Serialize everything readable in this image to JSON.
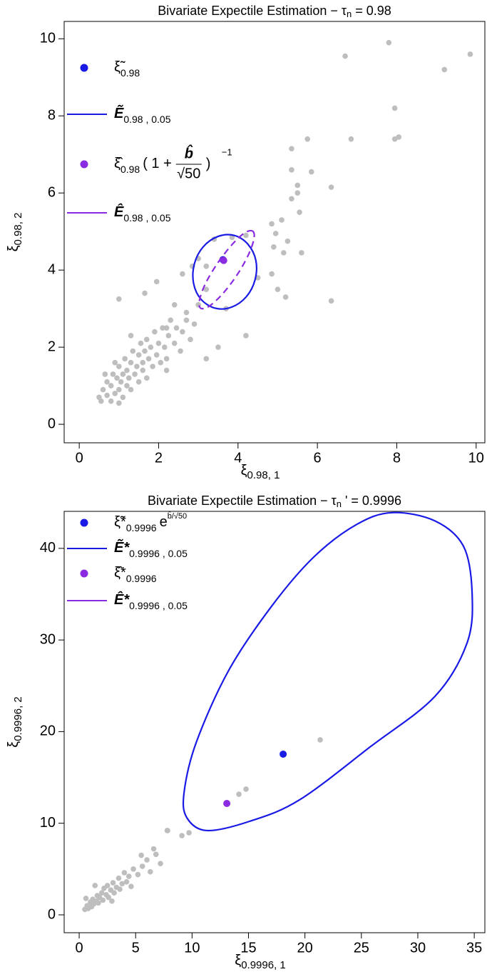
{
  "chart_data": [
    {
      "type": "scatter",
      "title": "Bivariate Expectile Estimation − τ",
      "title_sub": "n",
      "title_end": " =  0.98",
      "xlabel": "ξ",
      "xlabel_sub": "0.98, 1",
      "ylabel": "ξ",
      "ylabel_sub": "0.98, 2",
      "xlim": [
        -0.38,
        10.22
      ],
      "ylim": [
        -0.48,
        10.45
      ],
      "xticks": [
        0,
        2,
        4,
        6,
        8,
        10
      ],
      "yticks": [
        0,
        2,
        4,
        6,
        8,
        10
      ],
      "series": [
        {
          "kind": "point",
          "color": "#bebebe",
          "x": [
            7.8,
            6.7,
            9.85,
            9.2,
            7.95,
            8.05,
            7.95,
            6.85,
            5.75,
            5.35,
            5.35,
            5.85,
            6.35,
            5.5,
            5.5,
            5.35,
            5.55,
            5.1,
            4.85,
            4.95,
            5.25,
            4.9,
            5.15,
            5.6,
            6.35,
            5.2,
            5.0,
            4.85,
            4.5,
            4.2,
            3.85,
            3.4,
            3.2,
            3.0,
            2.85,
            2.6,
            3.2,
            3.7,
            4.2,
            3.5,
            3.2,
            1.0,
            1.65,
            1.95,
            2.4,
            2.7,
            2.2,
            0.5,
            0.55,
            0.6,
            0.7,
            0.7,
            0.8,
            0.8,
            0.85,
            0.9,
            0.95,
            1.0,
            1.0,
            1.05,
            1.1,
            1.1,
            1.15,
            1.2,
            1.2,
            1.25,
            1.3,
            1.3,
            1.35,
            1.4,
            1.45,
            1.5,
            1.5,
            1.55,
            1.6,
            1.6,
            1.65,
            1.7,
            1.7,
            1.75,
            1.8,
            1.85,
            1.9,
            1.95,
            2.0,
            2.05,
            2.1,
            2.15,
            2.2,
            2.25,
            2.3,
            2.4,
            2.45,
            2.55,
            2.6,
            2.7,
            2.8,
            2.9,
            3.0,
            1.3,
            0.9,
            2.2,
            1.0,
            0.65
          ],
          "values": [
            9.9,
            9.55,
            9.6,
            9.2,
            8.2,
            7.45,
            7.4,
            7.4,
            7.4,
            7.15,
            6.6,
            6.55,
            6.15,
            6.2,
            6.0,
            5.85,
            5.5,
            5.3,
            5.2,
            4.95,
            4.75,
            4.6,
            4.45,
            4.45,
            3.2,
            3.3,
            3.5,
            3.9,
            3.8,
            4.9,
            4.85,
            4.8,
            4.1,
            4.3,
            4.1,
            3.9,
            3.5,
            3.0,
            2.3,
            2.0,
            1.7,
            3.25,
            3.4,
            3.7,
            3.1,
            2.7,
            2.5,
            0.7,
            0.6,
            0.9,
            0.75,
            1.1,
            0.6,
            1.0,
            1.3,
            0.8,
            1.2,
            0.9,
            1.5,
            1.1,
            0.7,
            1.3,
            1.7,
            1.0,
            1.4,
            1.2,
            1.6,
            0.9,
            1.9,
            1.3,
            1.5,
            1.1,
            1.8,
            2.1,
            1.4,
            1.6,
            1.9,
            1.2,
            2.2,
            1.7,
            2.0,
            1.5,
            2.4,
            1.8,
            2.1,
            1.6,
            2.5,
            2.0,
            1.7,
            2.3,
            2.7,
            2.1,
            2.5,
            1.9,
            2.4,
            2.9,
            2.2,
            2.6,
            3.1,
            2.3,
            1.6,
            1.4,
            0.55,
            1.3
          ]
        },
        {
          "kind": "point",
          "color": "#1a1ae6",
          "name": "ξ̃",
          "name_sub": "0.98",
          "x": [
            3.62
          ],
          "values": [
            4.27
          ]
        },
        {
          "kind": "curve",
          "color": "#1a1ae6",
          "name": "Ẽ",
          "name_bold": true,
          "name_sub": "0.98 , 0.05",
          "x": [
            3.9,
            4.25,
            4.45,
            4.43,
            4.21,
            3.84,
            3.43,
            3.07,
            2.88,
            2.9,
            3.12,
            3.49
          ],
          "values": [
            4.9,
            4.67,
            4.25,
            3.75,
            3.31,
            3.04,
            3.01,
            3.24,
            3.66,
            4.16,
            4.6,
            4.87
          ]
        },
        {
          "kind": "point",
          "color": "#8a2be2",
          "name": "ξ̂",
          "name_sub": "0.98",
          "name_tail": "( 1 +",
          "name_frac_num": "b̂",
          "name_frac_den": "√50",
          "name_close": ")",
          "name_sup": "−1",
          "x": [
            3.64
          ],
          "values": [
            4.25
          ]
        },
        {
          "kind": "curve",
          "color": "#8a2be2",
          "dash": true,
          "name": "Ê",
          "name_bold": true,
          "name_sub": "0.98 , 0.05",
          "x": [
            4.37,
            4.4,
            4.25,
            3.96,
            3.6,
            3.27,
            3.06,
            3.03,
            3.18,
            3.48,
            3.84,
            4.16
          ],
          "values": [
            5.01,
            4.8,
            4.37,
            3.85,
            3.37,
            3.06,
            3.01,
            3.22,
            3.65,
            4.17,
            4.65,
            4.96
          ]
        }
      ]
    },
    {
      "type": "scatter",
      "title": "Bivariate Expectile Estimation − τ",
      "title_sub": "n",
      "title_end": " ' =  0.9996",
      "xlabel": "ξ",
      "xlabel_sub": "0.9996, 1",
      "ylabel": "ξ",
      "ylabel_sub": "0.9996, 2",
      "xlim": [
        -1.33,
        35.94
      ],
      "ylim": [
        -1.95,
        44.04
      ],
      "xticks": [
        0,
        5,
        10,
        15,
        20,
        25,
        30,
        35
      ],
      "yticks": [
        0,
        10,
        20,
        30,
        40
      ],
      "series": [
        {
          "kind": "point",
          "color": "#bebebe",
          "x": [
            21.35,
            14.15,
            14.78,
            9.73,
            9.1,
            7.83,
            0.5,
            0.7,
            0.8,
            1.0,
            1.1,
            1.2,
            1.3,
            1.5,
            1.6,
            1.7,
            1.8,
            2.0,
            2.1,
            2.2,
            2.4,
            2.5,
            2.6,
            2.8,
            3.0,
            3.1,
            3.3,
            3.5,
            3.6,
            3.8,
            4.0,
            4.2,
            4.4,
            4.6,
            4.8,
            5.2,
            5.6,
            6.0,
            6.3,
            6.8,
            7.2,
            7.8,
            6.6,
            5.5,
            1.4,
            2.9,
            0.6
          ],
          "values": [
            19.1,
            13.17,
            13.72,
            8.96,
            8.65,
            9.2,
            0.6,
            1.0,
            0.7,
            1.4,
            0.9,
            1.7,
            1.2,
            1.5,
            2.1,
            1.3,
            1.9,
            2.4,
            1.6,
            2.9,
            2.2,
            3.2,
            1.9,
            2.7,
            3.5,
            2.4,
            3.0,
            4.0,
            2.8,
            3.4,
            4.6,
            3.6,
            4.2,
            3.1,
            5.0,
            4.4,
            5.3,
            6.0,
            4.7,
            6.6,
            5.6,
            9.2,
            7.2,
            6.5,
            3.2,
            1.5,
            1.8
          ]
        },
        {
          "kind": "point",
          "color": "#1a1ae6",
          "name": "ξ̃*",
          "name_sub": "0.9996",
          "name_tail": "e",
          "name_sup": "b̂/√50",
          "x": [
            18.07
          ],
          "values": [
            17.54
          ]
        },
        {
          "kind": "curve",
          "color": "#1a1ae6",
          "name": "Ẽ*",
          "name_bold": true,
          "name_sub": "0.9996 , 0.05",
          "x": [
            11.31,
            15.1,
            19.52,
            25.84,
            31.52,
            34.37,
            34.81,
            34.05,
            31.52,
            27.73,
            24.57,
            20.78,
            16.99,
            13.2,
            10.36,
            9.29,
            9.54
          ],
          "values": [
            9.2,
            10.21,
            12.55,
            18.39,
            23.85,
            29.7,
            35.15,
            40.22,
            43.0,
            43.9,
            42.6,
            39.05,
            33.59,
            26.58,
            18.78,
            13.33,
            10.6
          ]
        },
        {
          "kind": "point",
          "color": "#8a2be2",
          "name": "ξ̂*",
          "name_sub": "0.9996",
          "x": [
            13.08
          ],
          "values": [
            12.16
          ]
        },
        {
          "kind": "curve",
          "color": "#8a2be2",
          "name": "Ê*",
          "name_bold": true,
          "name_sub": "0.9996 , 0.05",
          "x": [],
          "values": []
        }
      ]
    }
  ]
}
